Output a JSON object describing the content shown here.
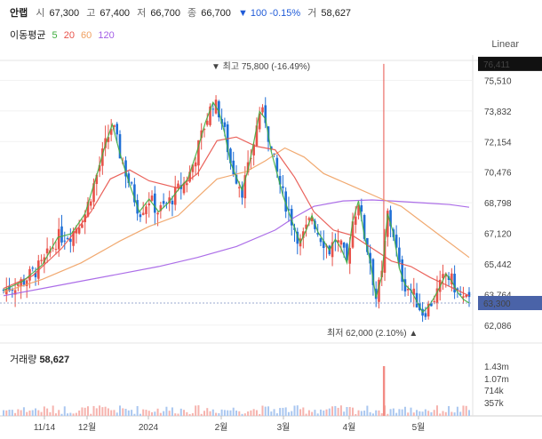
{
  "header": {
    "name": "안랩",
    "open_label": "시",
    "open": "67,300",
    "high_label": "고",
    "high": "67,400",
    "low_label": "저",
    "low": "66,700",
    "close_label": "종",
    "close": "66,700",
    "change": "▼ 100 -0.15%",
    "volume_label": "거",
    "volume": "58,627"
  },
  "ma_legend": {
    "label": "이동평균",
    "items": [
      {
        "text": "5",
        "color": "#3fae3f"
      },
      {
        "text": "20",
        "color": "#e8524a"
      },
      {
        "text": "60",
        "color": "#f0a060"
      },
      {
        "text": "120",
        "color": "#a35ee6"
      }
    ]
  },
  "scale_button": "Linear",
  "colors": {
    "up": "#e8524a",
    "down": "#1f6fd6",
    "ma5": "#3fae3f",
    "ma20": "#e8524a",
    "ma60": "#f0a060",
    "ma120": "#a35ee6",
    "high_tag": "#111111",
    "last_tag": "#4a63a8"
  },
  "chart_data": {
    "type": "candlestick",
    "y_ticks": [
      "75,510",
      "73,832",
      "72,154",
      "70,476",
      "68,798",
      "67,120",
      "65,442",
      "63,764",
      "62,086"
    ],
    "y_range": [
      61400,
      76600
    ],
    "x_ticks": [
      "11/14",
      "12월",
      "2024",
      "2월",
      "3월",
      "4월",
      "5월"
    ],
    "high_tag": "76,411",
    "last_tag": "63,300",
    "max_annotation": "▼ 최고 75,800 (-16.49%)",
    "min_annotation": "최저 62,000 (2.10%) ▲",
    "approx_close_path": [
      [
        0,
        64000
      ],
      [
        10,
        64500
      ],
      [
        20,
        65400
      ],
      [
        28,
        66900
      ],
      [
        35,
        67100
      ],
      [
        42,
        68200
      ],
      [
        48,
        70300
      ],
      [
        52,
        71800
      ],
      [
        56,
        73100
      ],
      [
        60,
        71500
      ],
      [
        65,
        69800
      ],
      [
        70,
        68300
      ],
      [
        75,
        69000
      ],
      [
        80,
        68300
      ],
      [
        85,
        68800
      ],
      [
        90,
        69500
      ],
      [
        95,
        70100
      ],
      [
        100,
        71700
      ],
      [
        104,
        73200
      ],
      [
        108,
        74300
      ],
      [
        111,
        73800
      ],
      [
        114,
        72600
      ],
      [
        117,
        71000
      ],
      [
        120,
        70200
      ],
      [
        123,
        69500
      ],
      [
        126,
        70600
      ],
      [
        129,
        72100
      ],
      [
        132,
        73800
      ],
      [
        135,
        73400
      ],
      [
        138,
        71600
      ],
      [
        141,
        70400
      ],
      [
        144,
        69200
      ],
      [
        147,
        68300
      ],
      [
        150,
        67400
      ],
      [
        153,
        66600
      ],
      [
        156,
        67300
      ],
      [
        159,
        68100
      ],
      [
        162,
        67200
      ],
      [
        165,
        66700
      ],
      [
        168,
        66200
      ],
      [
        171,
        66800
      ],
      [
        174,
        66300
      ],
      [
        177,
        65500
      ],
      [
        180,
        67800
      ],
      [
        183,
        68900
      ],
      [
        186,
        67000
      ],
      [
        189,
        65600
      ],
      [
        192,
        63600
      ],
      [
        195,
        64800
      ],
      [
        198,
        68200
      ],
      [
        201,
        67100
      ],
      [
        204,
        65200
      ],
      [
        207,
        64300
      ],
      [
        210,
        64000
      ],
      [
        213,
        63400
      ],
      [
        216,
        62800
      ],
      [
        219,
        63100
      ],
      [
        222,
        63600
      ],
      [
        225,
        64200
      ],
      [
        228,
        64900
      ],
      [
        231,
        64500
      ],
      [
        234,
        63900
      ],
      [
        237,
        63500
      ],
      [
        240,
        63300
      ]
    ],
    "ma120": [
      [
        0,
        63700
      ],
      [
        20,
        64100
      ],
      [
        40,
        64500
      ],
      [
        60,
        64900
      ],
      [
        80,
        65300
      ],
      [
        100,
        65800
      ],
      [
        120,
        66400
      ],
      [
        140,
        67300
      ],
      [
        150,
        68000
      ],
      [
        160,
        68600
      ],
      [
        175,
        68900
      ],
      [
        190,
        68950
      ],
      [
        200,
        68900
      ],
      [
        215,
        68800
      ],
      [
        230,
        68700
      ],
      [
        240,
        68550
      ]
    ],
    "ma60": [
      [
        0,
        63900
      ],
      [
        20,
        64600
      ],
      [
        40,
        65500
      ],
      [
        60,
        66700
      ],
      [
        75,
        67500
      ],
      [
        90,
        68100
      ],
      [
        100,
        69100
      ],
      [
        110,
        70100
      ],
      [
        125,
        70500
      ],
      [
        135,
        71100
      ],
      [
        145,
        71800
      ],
      [
        155,
        71300
      ],
      [
        165,
        70400
      ],
      [
        180,
        69700
      ],
      [
        195,
        69000
      ],
      [
        205,
        68600
      ],
      [
        215,
        67800
      ],
      [
        225,
        67000
      ],
      [
        240,
        65800
      ]
    ],
    "ma20": [
      [
        0,
        64100
      ],
      [
        15,
        64800
      ],
      [
        30,
        66300
      ],
      [
        45,
        68300
      ],
      [
        55,
        70100
      ],
      [
        65,
        70600
      ],
      [
        75,
        70000
      ],
      [
        90,
        69600
      ],
      [
        100,
        70400
      ],
      [
        110,
        72200
      ],
      [
        120,
        72400
      ],
      [
        130,
        71900
      ],
      [
        140,
        71700
      ],
      [
        150,
        70200
      ],
      [
        160,
        68300
      ],
      [
        170,
        67300
      ],
      [
        180,
        67000
      ],
      [
        190,
        66300
      ],
      [
        200,
        65600
      ],
      [
        210,
        65300
      ],
      [
        220,
        64700
      ],
      [
        230,
        64200
      ],
      [
        240,
        63700
      ]
    ],
    "volume": {
      "label": "거래량",
      "value": "58,627",
      "y_ticks": [
        "1.43m",
        "1.07m",
        "714k",
        "357k"
      ]
    }
  }
}
